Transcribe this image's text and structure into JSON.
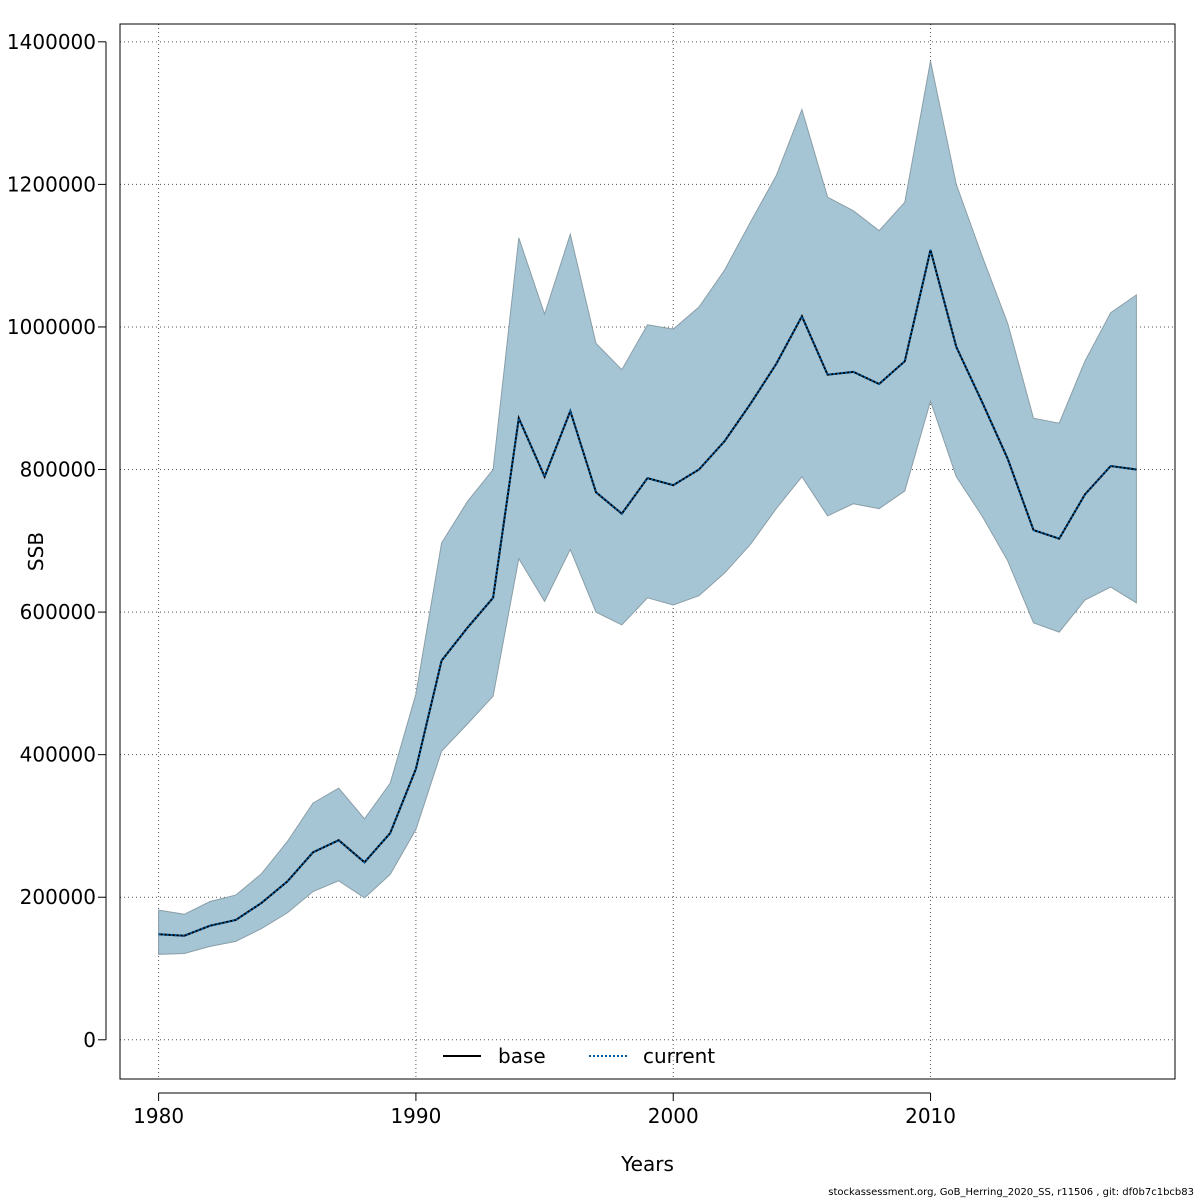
{
  "chart_data": {
    "type": "area",
    "xlabel": "Years",
    "ylabel": "SSB",
    "xlim": [
      1978.5,
      2019.5
    ],
    "ylim": [
      -55000,
      1425000
    ],
    "xticks": [
      1980,
      1990,
      2000,
      2010
    ],
    "yticks": [
      0,
      200000,
      400000,
      600000,
      800000,
      1000000,
      1200000,
      1400000
    ],
    "grid": true,
    "legend": {
      "position": "bottom-center",
      "entries": [
        "base",
        "current"
      ]
    },
    "colors": {
      "band_fill": "#a5c4d4",
      "band_edge": "#8a9fa8",
      "base": "#000000",
      "current": "#00589c"
    },
    "x": [
      1980,
      1981,
      1982,
      1983,
      1984,
      1985,
      1986,
      1987,
      1988,
      1989,
      1990,
      1991,
      1992,
      1993,
      1994,
      1995,
      1996,
      1997,
      1998,
      1999,
      2000,
      2001,
      2002,
      2003,
      2004,
      2005,
      2006,
      2007,
      2008,
      2009,
      2010,
      2011,
      2012,
      2013,
      2014,
      2015,
      2016,
      2017,
      2018
    ],
    "series": [
      {
        "name": "base",
        "style": "solid",
        "values": [
          148000,
          146000,
          160000,
          168000,
          192000,
          222000,
          263000,
          280000,
          249000,
          290000,
          380000,
          532000,
          578000,
          620000,
          872000,
          790000,
          882000,
          768000,
          738000,
          788000,
          778000,
          800000,
          840000,
          892000,
          948000,
          1015000,
          933000,
          937000,
          920000,
          952000,
          1108000,
          972000,
          895000,
          815000,
          715000,
          703000,
          765000,
          805000,
          800000
        ]
      },
      {
        "name": "current",
        "style": "dotted",
        "values": [
          148000,
          146000,
          160000,
          168000,
          192000,
          222000,
          263000,
          280000,
          249000,
          290000,
          380000,
          532000,
          578000,
          620000,
          872000,
          790000,
          882000,
          768000,
          738000,
          788000,
          778000,
          800000,
          840000,
          892000,
          948000,
          1015000,
          933000,
          937000,
          920000,
          952000,
          1108000,
          972000,
          895000,
          815000,
          715000,
          703000,
          765000,
          805000,
          800000
        ]
      }
    ],
    "band_upper": [
      182000,
      176000,
      194000,
      203000,
      233000,
      278000,
      332000,
      353000,
      310000,
      360000,
      485000,
      697000,
      755000,
      800000,
      1125000,
      1018000,
      1130000,
      977000,
      940000,
      1003000,
      997000,
      1028000,
      1080000,
      1147000,
      1212000,
      1305000,
      1182000,
      1163000,
      1135000,
      1175000,
      1373000,
      1200000,
      1100000,
      1005000,
      872000,
      865000,
      952000,
      1020000,
      1045000
    ],
    "band_lower": [
      120000,
      121000,
      131000,
      138000,
      156000,
      178000,
      208000,
      223000,
      199000,
      232000,
      295000,
      405000,
      443000,
      482000,
      675000,
      615000,
      688000,
      600000,
      582000,
      620000,
      610000,
      623000,
      655000,
      695000,
      745000,
      790000,
      735000,
      752000,
      745000,
      770000,
      896000,
      790000,
      735000,
      672000,
      585000,
      572000,
      617000,
      635000,
      613000
    ]
  },
  "footer": "stockassessment.org, GoB_Herring_2020_SS, r11506 , git: df0b7c1bcb83"
}
